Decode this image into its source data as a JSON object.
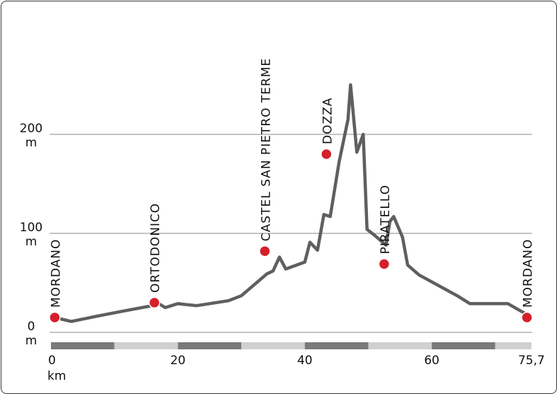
{
  "chart_data": {
    "type": "line",
    "x_unit": "km",
    "y_unit": "m",
    "x_ticks": [
      "0",
      "20",
      "40",
      "60",
      "75,7"
    ],
    "y_ticks": [
      {
        "value": 0,
        "label": "0"
      },
      {
        "value": 100,
        "label": "100"
      },
      {
        "value": 200,
        "label": "200"
      }
    ],
    "xlim": [
      0,
      75.7
    ],
    "ylim": [
      0,
      200
    ],
    "grid": true,
    "line_color": "#5f5f62",
    "marker_color": "#d51f2b",
    "profile": [
      [
        0.6,
        15
      ],
      [
        3.2,
        11
      ],
      [
        7,
        16
      ],
      [
        11,
        21
      ],
      [
        16,
        27
      ],
      [
        17,
        29
      ],
      [
        18,
        25
      ],
      [
        19,
        27
      ],
      [
        20,
        29
      ],
      [
        21.4,
        28
      ],
      [
        23,
        27
      ],
      [
        28,
        32
      ],
      [
        30,
        37
      ],
      [
        34,
        59
      ],
      [
        35,
        62
      ],
      [
        36,
        76
      ],
      [
        37,
        64
      ],
      [
        40,
        71
      ],
      [
        40.8,
        91
      ],
      [
        42,
        83
      ],
      [
        43,
        119
      ],
      [
        44,
        117
      ],
      [
        45.4,
        172
      ],
      [
        46.8,
        215
      ],
      [
        47.2,
        250
      ],
      [
        48.2,
        182
      ],
      [
        49.2,
        200
      ],
      [
        49.8,
        104
      ],
      [
        51,
        98
      ],
      [
        52.8,
        88
      ],
      [
        53.4,
        112
      ],
      [
        54,
        117
      ],
      [
        55.4,
        96
      ],
      [
        56.2,
        68
      ],
      [
        58,
        58
      ],
      [
        64,
        37
      ],
      [
        66,
        29
      ],
      [
        72,
        29
      ],
      [
        75,
        18
      ]
    ],
    "points": [
      {
        "name": "MORDANO",
        "x": 0.6,
        "y": 15
      },
      {
        "name": "ORTODONICO",
        "x": 16.3,
        "y": 30
      },
      {
        "name": "CASTEL SAN PIETRO TERME",
        "x": 33.7,
        "y": 82
      },
      {
        "name": "DOZZA",
        "x": 43.4,
        "y": 180
      },
      {
        "name": "PIRATELLO",
        "x": 52.5,
        "y": 69
      },
      {
        "name": "MORDANO",
        "x": 75.0,
        "y": 15
      }
    ]
  }
}
